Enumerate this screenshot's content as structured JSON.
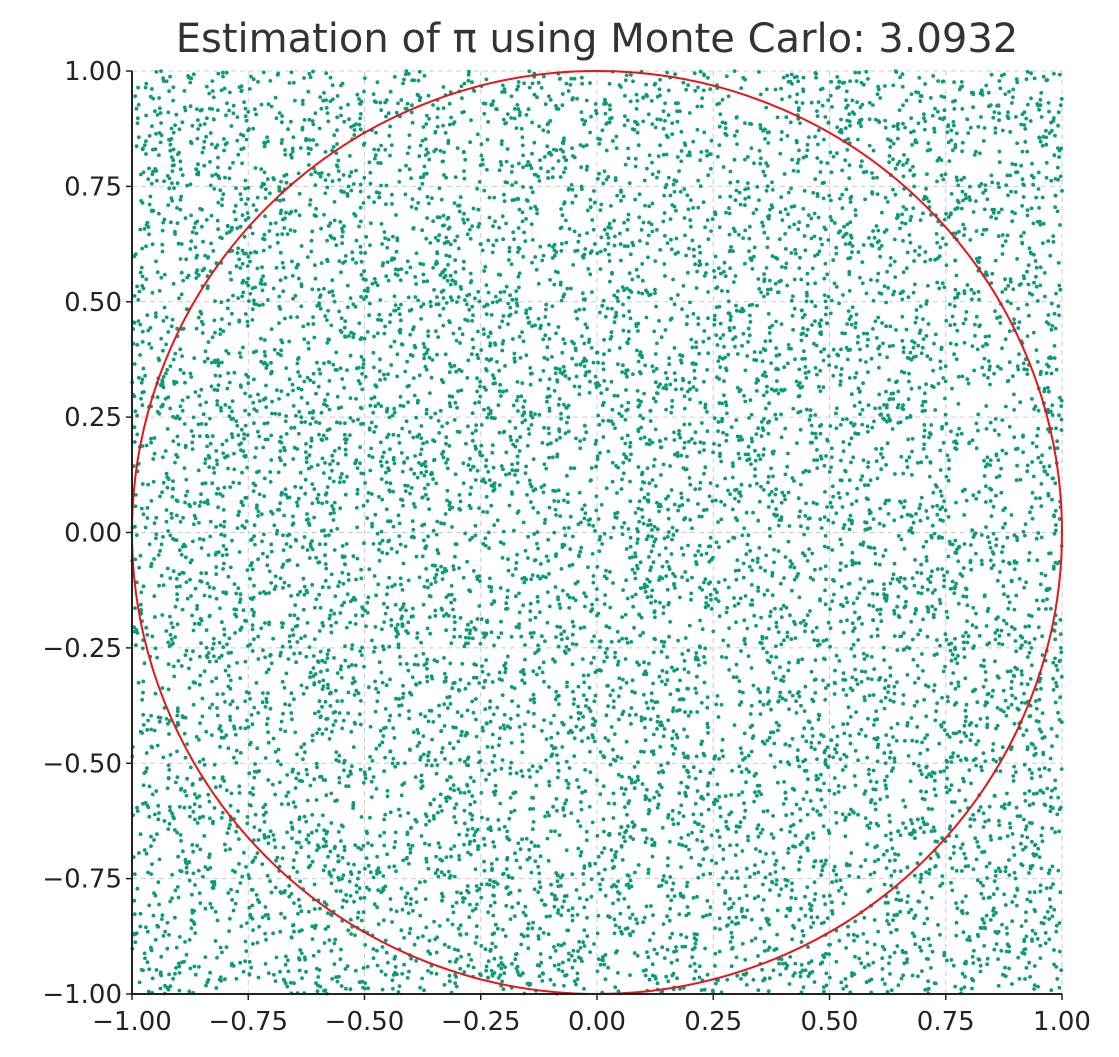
{
  "chart_data": {
    "type": "scatter",
    "title": "Estimation of π using Monte Carlo: 3.0932",
    "xlabel": "",
    "ylabel": "",
    "xlim": [
      -1.0,
      1.0
    ],
    "ylim": [
      -1.0,
      1.0
    ],
    "x_ticks": [
      "−1.00",
      "−0.75",
      "−0.50",
      "−0.25",
      "0.00",
      "0.25",
      "0.50",
      "0.75",
      "1.00"
    ],
    "y_ticks": [
      "1.00",
      "0.75",
      "0.50",
      "0.25",
      "0.00",
      "−0.25",
      "−0.50",
      "−0.75",
      "−1.00"
    ],
    "grid": true,
    "point_color": "#0b9b77",
    "circle_color": "#e8141a",
    "series": [
      {
        "values": "uniform random points in [-1,1]×[-1,1] (dense scatter)"
      }
    ],
    "circle": {
      "center": [
        0.0,
        0.0
      ],
      "radius": 1.0
    },
    "estimate": 3.0932
  }
}
